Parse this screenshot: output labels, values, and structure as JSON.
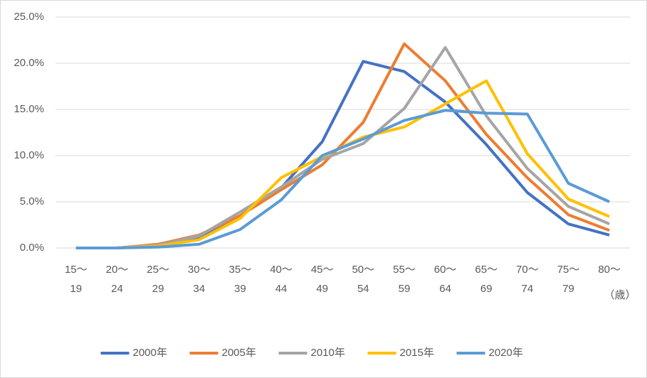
{
  "chart_data": {
    "type": "line",
    "categories": [
      [
        "15～",
        "19"
      ],
      [
        "20～",
        "24"
      ],
      [
        "25～",
        "29"
      ],
      [
        "30～",
        "34"
      ],
      [
        "35～",
        "39"
      ],
      [
        "40～",
        "44"
      ],
      [
        "45～",
        "49"
      ],
      [
        "50～",
        "54"
      ],
      [
        "55～",
        "59"
      ],
      [
        "60～",
        "64"
      ],
      [
        "65～",
        "69"
      ],
      [
        "70～",
        "74"
      ],
      [
        "75～",
        "79"
      ],
      [
        "80～"
      ]
    ],
    "x_label": "（歳）",
    "series": [
      {
        "name": "2000年",
        "color": "#4472c4",
        "values": [
          0,
          0,
          0.3,
          1.2,
          3.5,
          6.5,
          11.5,
          20.2,
          19.1,
          15.8,
          11.2,
          6.0,
          2.6,
          1.4
        ]
      },
      {
        "name": "2005年",
        "color": "#ed7d31",
        "values": [
          0,
          0,
          0.4,
          1.4,
          3.5,
          6.3,
          9.0,
          13.6,
          22.1,
          18.1,
          12.3,
          7.6,
          3.6,
          1.9
        ]
      },
      {
        "name": "2010年",
        "color": "#a5a5a5",
        "values": [
          0,
          0,
          0.3,
          1.3,
          3.9,
          6.6,
          9.6,
          11.3,
          15.1,
          21.7,
          14.3,
          8.6,
          4.5,
          2.6
        ]
      },
      {
        "name": "2015年",
        "color": "#ffc000",
        "values": [
          0,
          0,
          0.2,
          0.9,
          3.2,
          7.6,
          9.9,
          12.0,
          13.1,
          15.6,
          18.1,
          10.2,
          5.3,
          3.4
        ]
      },
      {
        "name": "2020年",
        "color": "#5b9bd5",
        "values": [
          0,
          0,
          0.1,
          0.4,
          2.0,
          5.2,
          10.0,
          11.8,
          13.8,
          14.9,
          14.6,
          14.5,
          7.0,
          5.0
        ]
      }
    ],
    "ylim": [
      0,
      25
    ],
    "yticks": [
      {
        "value": 0,
        "label": "0.0%"
      },
      {
        "value": 5,
        "label": "5.0%"
      },
      {
        "value": 10,
        "label": "10.0%"
      },
      {
        "value": 15,
        "label": "15.0%"
      },
      {
        "value": 20,
        "label": "20.0%"
      },
      {
        "value": 25,
        "label": "25.0%"
      }
    ],
    "grid": true,
    "legend": "bottom"
  }
}
